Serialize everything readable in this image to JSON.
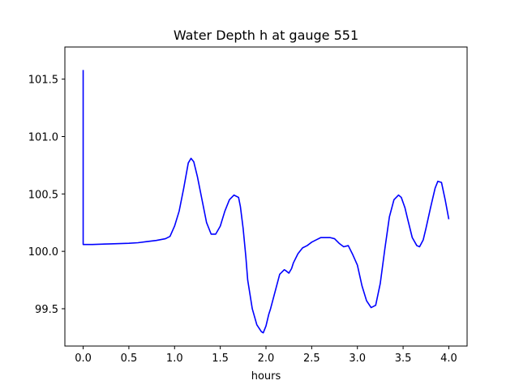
{
  "chart_data": {
    "type": "line",
    "title": "Water Depth h at gauge 551",
    "xlabel": "hours",
    "ylabel": "",
    "xlim": [
      -0.2,
      4.2
    ],
    "ylim": [
      99.175,
      101.78
    ],
    "xticks": [
      0.0,
      0.5,
      1.0,
      1.5,
      2.0,
      2.5,
      3.0,
      3.5,
      4.0
    ],
    "xtick_labels": [
      "0.0",
      "0.5",
      "1.0",
      "1.5",
      "2.0",
      "2.5",
      "3.0",
      "3.5",
      "4.0"
    ],
    "yticks": [
      99.5,
      100.0,
      100.5,
      101.0,
      101.5
    ],
    "ytick_labels": [
      "99.5",
      "100.0",
      "100.5",
      "101.0",
      "101.5"
    ],
    "grid": false,
    "series": [
      {
        "color": "#0000ff",
        "x": [
          0.0,
          0.0,
          0.0,
          0.1,
          0.3,
          0.5,
          0.6,
          0.7,
          0.8,
          0.9,
          0.95,
          1.0,
          1.05,
          1.1,
          1.15,
          1.18,
          1.21,
          1.25,
          1.3,
          1.35,
          1.4,
          1.45,
          1.5,
          1.55,
          1.6,
          1.65,
          1.7,
          1.72,
          1.75,
          1.78,
          1.8,
          1.85,
          1.9,
          1.95,
          1.97,
          2.0,
          2.03,
          2.05,
          2.1,
          2.15,
          2.2,
          2.22,
          2.25,
          2.28,
          2.3,
          2.35,
          2.4,
          2.45,
          2.5,
          2.55,
          2.6,
          2.65,
          2.7,
          2.75,
          2.8,
          2.85,
          2.9,
          2.95,
          3.0,
          3.05,
          3.1,
          3.15,
          3.2,
          3.25,
          3.3,
          3.35,
          3.4,
          3.45,
          3.48,
          3.52,
          3.55,
          3.6,
          3.65,
          3.68,
          3.72,
          3.75,
          3.8,
          3.85,
          3.88,
          3.92,
          3.96,
          4.0
        ],
        "y": [
          101.58,
          101.0,
          100.06,
          100.06,
          100.065,
          100.07,
          100.075,
          100.085,
          100.095,
          100.11,
          100.13,
          100.22,
          100.35,
          100.55,
          100.77,
          100.81,
          100.78,
          100.65,
          100.45,
          100.25,
          100.15,
          100.15,
          100.22,
          100.35,
          100.45,
          100.49,
          100.47,
          100.39,
          100.2,
          99.95,
          99.75,
          99.5,
          99.36,
          99.3,
          99.29,
          99.35,
          99.45,
          99.5,
          99.65,
          99.8,
          99.84,
          99.83,
          99.81,
          99.85,
          99.9,
          99.98,
          100.03,
          100.05,
          100.08,
          100.1,
          100.12,
          100.12,
          100.12,
          100.11,
          100.07,
          100.04,
          100.05,
          99.97,
          99.88,
          99.7,
          99.57,
          99.51,
          99.53,
          99.72,
          100.02,
          100.3,
          100.45,
          100.49,
          100.47,
          100.38,
          100.28,
          100.12,
          100.05,
          100.04,
          100.1,
          100.2,
          100.38,
          100.55,
          100.61,
          100.6,
          100.45,
          100.28
        ]
      }
    ]
  }
}
